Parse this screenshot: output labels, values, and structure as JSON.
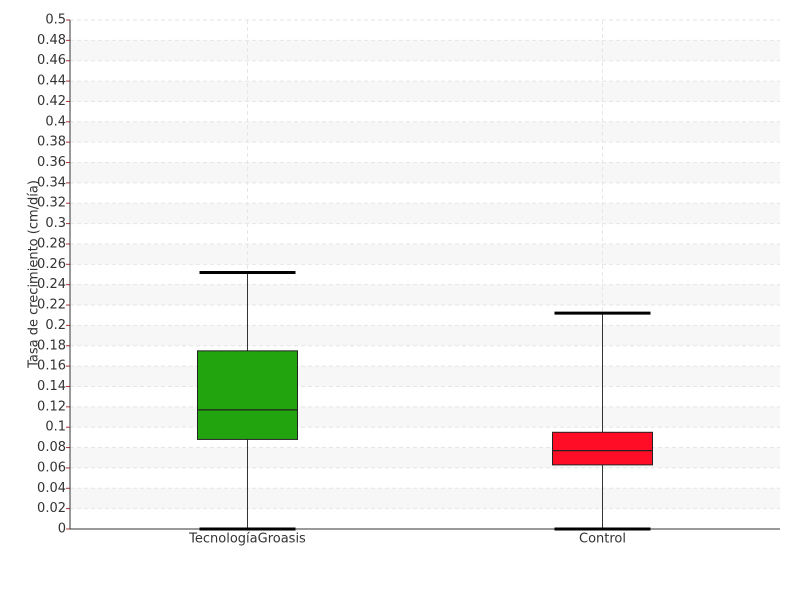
{
  "chart_data": {
    "type": "box",
    "y_label": "Tasa de crecimiento (cm/día)",
    "categories": [
      "TecnologíaGroasis",
      "Control"
    ],
    "boxes": [
      {
        "min": 0,
        "q1": 0.088,
        "median": 0.117,
        "q3": 0.175,
        "max": 0.252,
        "color": "#22a40f"
      },
      {
        "min": 0,
        "q1": 0.063,
        "median": 0.077,
        "q3": 0.095,
        "max": 0.212,
        "color": "#ff0d26"
      }
    ],
    "ylim": [
      0,
      0.5
    ],
    "yticks": [
      0,
      0.02,
      0.04,
      0.06,
      0.08,
      0.1,
      0.12,
      0.14,
      0.16,
      0.18,
      0.2,
      0.22,
      0.24,
      0.26,
      0.28,
      0.3,
      0.32,
      0.34,
      0.36,
      0.38,
      0.4,
      0.42,
      0.44,
      0.46,
      0.48,
      0.5
    ],
    "grid": true
  }
}
